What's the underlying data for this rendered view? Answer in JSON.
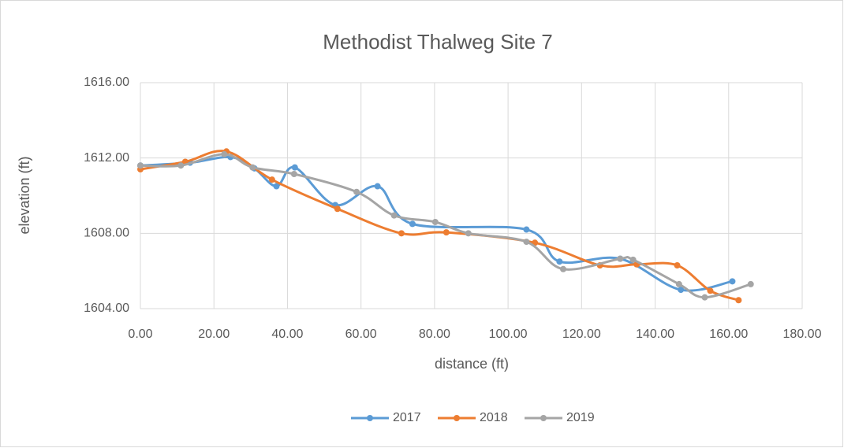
{
  "chart_data": {
    "type": "line",
    "title": "Methodist Thalweg Site 7",
    "x_label": "distance (ft)",
    "y_label": "elevation (ft)",
    "xlim": [
      0,
      180
    ],
    "xticks": [
      {
        "value": 0,
        "label": "0.00"
      },
      {
        "value": 20,
        "label": "20.00"
      },
      {
        "value": 40,
        "label": "40.00"
      },
      {
        "value": 60,
        "label": "60.00"
      },
      {
        "value": 80,
        "label": "80.00"
      },
      {
        "value": 100,
        "label": "100.00"
      },
      {
        "value": 120,
        "label": "120.00"
      },
      {
        "value": 140,
        "label": "140.00"
      },
      {
        "value": 160,
        "label": "160.00"
      },
      {
        "value": 180,
        "label": "180.00"
      }
    ],
    "ylim": [
      1604,
      1616
    ],
    "yticks": [
      {
        "value": 1604,
        "label": "1604.00"
      },
      {
        "value": 1608,
        "label": "1608.00"
      },
      {
        "value": 1612,
        "label": "1612.00"
      },
      {
        "value": 1616,
        "label": "1616.00"
      }
    ],
    "grid": true,
    "smooth": true,
    "legend": "bottom",
    "series": [
      {
        "name": "2017",
        "color": "#5b9bd5",
        "x": [
          0,
          13.5,
          24.5,
          31,
          37,
          42,
          53,
          64.5,
          74,
          105,
          114,
          130.5,
          147,
          161
        ],
        "values": [
          1611.6,
          1611.75,
          1612.05,
          1611.45,
          1610.5,
          1611.5,
          1609.5,
          1610.5,
          1608.5,
          1608.2,
          1606.5,
          1606.65,
          1605,
          1605.45
        ]
      },
      {
        "name": "2018",
        "color": "#ed7d31",
        "x": [
          0,
          12.2,
          23.4,
          35.8,
          53.6,
          71,
          83.2,
          107.3,
          125,
          135,
          146,
          155,
          162.7
        ],
        "values": [
          1611.4,
          1611.8,
          1612.35,
          1610.85,
          1609.3,
          1608,
          1608.05,
          1607.5,
          1606.3,
          1606.35,
          1606.3,
          1604.95,
          1604.45
        ]
      },
      {
        "name": "2019",
        "color": "#a5a5a5",
        "x": [
          0,
          11,
          22.8,
          30.5,
          41.8,
          58.8,
          69,
          80.2,
          89.2,
          105,
          115,
          130.5,
          134,
          146.5,
          153.5,
          166
        ],
        "values": [
          1611.6,
          1611.6,
          1612.2,
          1611.5,
          1611.15,
          1610.2,
          1608.95,
          1608.6,
          1608,
          1607.55,
          1606.1,
          1606.65,
          1606.6,
          1605.3,
          1604.6,
          1605.3
        ]
      }
    ]
  }
}
